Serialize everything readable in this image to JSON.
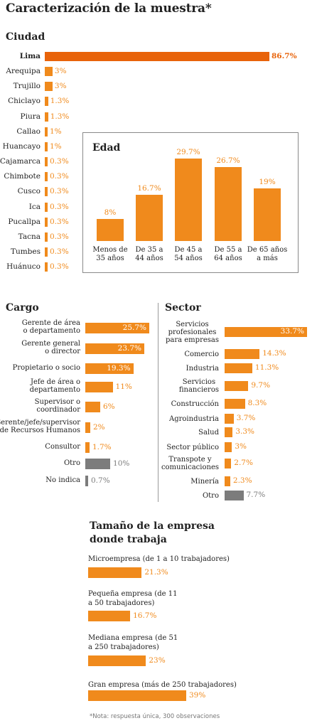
{
  "title": "Caracterización de la muestra*",
  "colors": {
    "orange": "#f08a1c",
    "orange_dark": "#e8630a",
    "gray": "#7c7c7c"
  },
  "note": "*Nota: respuesta única, 300 observaciones",
  "chart_data": [
    {
      "type": "bar",
      "orientation": "horizontal",
      "title": "Ciudad",
      "categories": [
        "Lima",
        "Arequipa",
        "Trujillo",
        "Chiclayo",
        "Piura",
        "Callao",
        "Huancayo",
        "Cajamarca",
        "Chimbote",
        "Cusco",
        "Ica",
        "Pucallpa",
        "Tacna",
        "Tumbes",
        "Huánuco"
      ],
      "values": [
        86.7,
        3,
        3,
        1.3,
        1.3,
        1,
        1,
        0.3,
        0.3,
        0.3,
        0.3,
        0.3,
        0.3,
        0.3,
        0.3
      ],
      "value_labels": [
        "86.7%",
        "3%",
        "3%",
        "1.3%",
        "1.3%",
        "1%",
        "1%",
        "0.3%",
        "0.3%",
        "0.3%",
        "0.3%",
        "0.3%",
        "0.3%",
        "0.3%",
        "0.3%"
      ],
      "highlight": "Lima"
    },
    {
      "type": "bar",
      "orientation": "vertical",
      "title": "Edad",
      "categories": [
        "Menos de 35 años",
        "De 35 a 44 años",
        "De 45 a 54 años",
        "De 55 a 64 años",
        "De 65 años a más"
      ],
      "category_lines": [
        [
          "Menos de",
          "35 años"
        ],
        [
          "De 35 a",
          "44 años"
        ],
        [
          "De 45 a",
          "54 años"
        ],
        [
          "De 55 a",
          "64 años"
        ],
        [
          "De 65 años",
          "a más"
        ]
      ],
      "values": [
        8,
        16.7,
        29.7,
        26.7,
        19
      ],
      "value_labels": [
        "8%",
        "16.7%",
        "29.7%",
        "26.7%",
        "19%"
      ]
    },
    {
      "type": "bar",
      "orientation": "horizontal",
      "title": "Cargo",
      "categories": [
        "Gerente de área o departamento",
        "Gerente general o director",
        "Propietario o socio",
        "Jefe de área o departamento",
        "Supervisor o coordinador",
        "Gerente/jefe/supervisor de Recursos Humanos",
        "Consultor",
        "Otro",
        "No indica"
      ],
      "category_lines": [
        [
          "Gerente de área",
          "o departamento"
        ],
        [
          "Gerente general",
          "o director"
        ],
        [
          "Propietario o socio"
        ],
        [
          "Jefe de área o",
          "departamento"
        ],
        [
          "Supervisor o",
          "coordinador"
        ],
        [
          "Gerente/jefe/supervisor",
          "de Recursos Humanos"
        ],
        [
          "Consultor"
        ],
        [
          "Otro"
        ],
        [
          "No indica"
        ]
      ],
      "values": [
        25.7,
        23.7,
        19.3,
        11,
        6,
        2,
        1.7,
        10,
        0.7
      ],
      "value_labels": [
        "25.7%",
        "23.7%",
        "19.3%",
        "11%",
        "6%",
        "2%",
        "1.7%",
        "10%",
        "0.7%"
      ],
      "gray_categories": [
        "Otro",
        "No indica"
      ]
    },
    {
      "type": "bar",
      "orientation": "horizontal",
      "title": "Sector",
      "categories": [
        "Servicios profesionales para empresas",
        "Comercio",
        "Industria",
        "Servicios financieros",
        "Construcción",
        "Agroindustria",
        "Salud",
        "Sector público",
        "Transporte y comunicaciones",
        "Minería",
        "Otro"
      ],
      "category_lines": [
        [
          "Servicios",
          "profesionales",
          "para empresas"
        ],
        [
          "Comercio"
        ],
        [
          "Industria"
        ],
        [
          "Servicios",
          "financieros"
        ],
        [
          "Construcción"
        ],
        [
          "Agroindustria"
        ],
        [
          "Salud"
        ],
        [
          "Sector público"
        ],
        [
          "Transpote y",
          "comunicaciones"
        ],
        [
          "Minería"
        ],
        [
          "Otro"
        ]
      ],
      "values": [
        33.7,
        14.3,
        11.3,
        9.7,
        8.3,
        3.7,
        3.3,
        3,
        2.7,
        2.3,
        7.7
      ],
      "value_labels": [
        "33.7%",
        "14.3%",
        "11.3%",
        "9.7%",
        "8.3%",
        "3.7%",
        "3.3%",
        "3%",
        "2.7%",
        "2.3%",
        "7.7%"
      ],
      "gray_categories": [
        "Otro"
      ]
    },
    {
      "type": "bar",
      "orientation": "horizontal",
      "title": "Tamaño de la empresa donde trabaja",
      "title_lines": [
        "Tamaño de la empresa",
        "donde trabaja"
      ],
      "categories": [
        "Microempresa (de 1 a 10 trabajadores)",
        "Pequeña empresa (de 11 a 50 trabajadores)",
        "Mediana empresa (de 51 a 250 trabajadores)",
        "Gran empresa (más de 250 trabajadores)"
      ],
      "category_lines": [
        [
          "Microempresa (de 1 a 10 trabajadores)"
        ],
        [
          "Pequeña empresa (de 11",
          "a 50 trabajadores)"
        ],
        [
          "Mediana empresa (de 51",
          "a 250 trabajadores)"
        ],
        [
          "Gran empresa (más de 250 trabajadores)"
        ]
      ],
      "values": [
        21.3,
        16.7,
        23,
        39
      ],
      "value_labels": [
        "21.3%",
        "16.7%",
        "23%",
        "39%"
      ]
    }
  ]
}
